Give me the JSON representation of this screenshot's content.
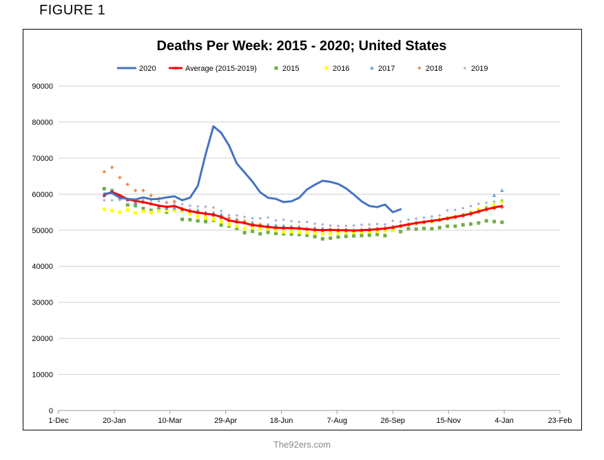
{
  "figure_label": "FIGURE 1",
  "credit": "The92ers.com",
  "chart_data": {
    "type": "line",
    "title": "Deaths Per Week: 2015 - 2020; United States",
    "xlabel": "",
    "ylabel": "",
    "ylim": [
      0,
      90000
    ],
    "y_ticks": [
      "0",
      "10000",
      "20000",
      "30000",
      "40000",
      "50000",
      "60000",
      "70000",
      "80000",
      "90000"
    ],
    "x_ticks": [
      "1-Dec",
      "20-Jan",
      "10-Mar",
      "29-Apr",
      "18-Jun",
      "7-Aug",
      "26-Sep",
      "15-Nov",
      "4-Jan",
      "23-Feb"
    ],
    "grid": "horizontal",
    "legend_position": "top",
    "week_axis_note": "x values are week of year (1-53)",
    "series": [
      {
        "name": "2020",
        "style": "line",
        "color": "#4472C4",
        "x": [
          1,
          2,
          3,
          4,
          5,
          6,
          7,
          8,
          9,
          10,
          11,
          12,
          13,
          14,
          15,
          16,
          17,
          18,
          19,
          20,
          21,
          22,
          23,
          24,
          25,
          26,
          27,
          28,
          29,
          30,
          31,
          32,
          33,
          34,
          35,
          36,
          37,
          38,
          39
        ],
        "values": [
          60100,
          60300,
          59000,
          58700,
          58500,
          59100,
          58600,
          58700,
          59100,
          59400,
          58300,
          59000,
          62300,
          71000,
          78800,
          77000,
          73500,
          68500,
          66000,
          63500,
          60500,
          59000,
          58700,
          57800,
          58000,
          59000,
          61300,
          62600,
          63700,
          63400,
          62800,
          61600,
          59900,
          58000,
          56700,
          56400,
          57100,
          55000,
          55800
        ]
      },
      {
        "name": "Average (2015-2019)",
        "style": "line-marker",
        "color": "#FF0000",
        "x": [
          1,
          2,
          3,
          4,
          5,
          6,
          7,
          8,
          9,
          10,
          11,
          12,
          13,
          14,
          15,
          16,
          17,
          18,
          19,
          20,
          21,
          22,
          23,
          24,
          25,
          26,
          27,
          28,
          29,
          30,
          31,
          32,
          33,
          34,
          35,
          36,
          37,
          38,
          39,
          40,
          41,
          42,
          43,
          44,
          45,
          46,
          47,
          48,
          49,
          50,
          51,
          52
        ],
        "values": [
          59800,
          60600,
          59700,
          58600,
          58100,
          57800,
          57300,
          56800,
          56500,
          56700,
          55900,
          55300,
          54900,
          54600,
          54300,
          53700,
          52700,
          52300,
          52000,
          51400,
          51200,
          50900,
          50700,
          50600,
          50600,
          50500,
          50300,
          50100,
          50000,
          50100,
          50000,
          50000,
          49900,
          50000,
          50100,
          50300,
          50500,
          50800,
          51200,
          51600,
          52000,
          52300,
          52600,
          52900,
          53300,
          53700,
          54100,
          54600,
          55200,
          55800,
          56300,
          56700
        ]
      },
      {
        "name": "2015",
        "style": "marker-square",
        "color": "#70AD47",
        "x": [
          1,
          2,
          3,
          4,
          5,
          6,
          7,
          8,
          9,
          10,
          11,
          12,
          13,
          14,
          15,
          16,
          17,
          18,
          19,
          20,
          21,
          22,
          23,
          24,
          25,
          26,
          27,
          28,
          29,
          30,
          31,
          32,
          33,
          34,
          35,
          36,
          37,
          38,
          39,
          40,
          41,
          42,
          43,
          44,
          45,
          46,
          47,
          48,
          49,
          50,
          51,
          52
        ],
        "values": [
          61500,
          61000,
          58800,
          57000,
          56800,
          56000,
          55500,
          55700,
          55000,
          55500,
          53000,
          52900,
          52600,
          52400,
          52700,
          51400,
          51200,
          50500,
          49300,
          49700,
          49000,
          49400,
          49100,
          49000,
          48900,
          48800,
          48600,
          48200,
          47600,
          47800,
          48100,
          48300,
          48400,
          48500,
          48600,
          48800,
          48500,
          50000,
          49600,
          50400,
          50300,
          50500,
          50400,
          50700,
          51100,
          51100,
          51500,
          51700,
          52000,
          52600,
          52400,
          52200
        ]
      },
      {
        "name": "2016",
        "style": "marker-square",
        "color": "#FFFF00",
        "x": [
          1,
          2,
          3,
          4,
          5,
          6,
          7,
          8,
          9,
          10,
          11,
          12,
          13,
          14,
          15,
          16,
          17,
          18,
          19,
          20,
          21,
          22,
          23,
          24,
          25,
          26,
          27,
          28,
          29,
          30,
          31,
          32,
          33,
          34,
          35,
          36,
          37,
          38,
          39,
          40,
          41,
          42,
          43,
          44,
          45,
          46,
          47,
          48,
          49,
          50,
          51,
          52
        ],
        "values": [
          55800,
          55400,
          55000,
          55600,
          54800,
          55200,
          54900,
          55300,
          55500,
          55500,
          55300,
          54500,
          53800,
          53400,
          53000,
          52300,
          51600,
          51100,
          50500,
          50600,
          50300,
          50500,
          49900,
          49500,
          49600,
          49400,
          49300,
          49200,
          49000,
          49100,
          49200,
          49400,
          49400,
          49500,
          49600,
          49700,
          49800,
          49900,
          51000,
          51600,
          51900,
          52100,
          52400,
          52800,
          53300,
          53700,
          54300,
          55000,
          55800,
          56400,
          57000,
          57900
        ]
      },
      {
        "name": "2017",
        "style": "marker-triangle",
        "color": "#5B9BD5",
        "x": [
          1,
          2,
          3,
          4,
          5,
          6,
          7,
          8,
          9,
          10,
          11,
          12,
          13,
          14,
          15,
          16,
          17,
          18,
          19,
          20,
          21,
          22,
          23,
          24,
          25,
          26,
          27,
          28,
          29,
          30,
          31,
          32,
          33,
          34,
          35,
          36,
          37,
          38,
          39,
          40,
          41,
          42,
          43,
          44,
          45,
          46,
          47,
          48,
          49,
          50,
          51,
          52
        ],
        "values": [
          59500,
          60800,
          58800,
          58300,
          57600,
          57800,
          57400,
          56400,
          56000,
          56100,
          55700,
          55600,
          55500,
          54900,
          54800,
          54300,
          53000,
          53000,
          52400,
          52100,
          51400,
          51500,
          51300,
          51200,
          51000,
          50900,
          50400,
          50600,
          50500,
          50300,
          50200,
          50200,
          50000,
          50200,
          50400,
          50500,
          50700,
          51000,
          51300,
          51700,
          52100,
          52400,
          52700,
          53000,
          53400,
          53800,
          54300,
          54800,
          55400,
          56200,
          59600,
          61000
        ]
      },
      {
        "name": "2018",
        "style": "marker-cross",
        "color": "#ED7D31",
        "x": [
          1,
          2,
          3,
          4,
          5,
          6,
          7,
          8,
          9,
          10,
          11,
          12,
          13,
          14,
          15,
          16,
          17,
          18,
          19,
          20,
          21,
          22,
          23,
          24,
          25,
          26,
          27,
          28,
          29,
          30,
          31,
          32,
          33,
          34,
          35,
          36,
          37,
          38,
          39,
          40,
          41,
          42,
          43,
          44,
          45,
          46,
          47,
          48,
          49,
          50,
          51,
          52
        ],
        "values": [
          66200,
          67400,
          64600,
          62700,
          61000,
          61000,
          59600,
          58800,
          57700,
          58000,
          56000,
          55300,
          55100,
          54400,
          54000,
          53300,
          53400,
          52800,
          52500,
          51600,
          51600,
          51000,
          50800,
          50700,
          50700,
          50600,
          50400,
          50100,
          49900,
          50100,
          50000,
          49800,
          49800,
          50100,
          50100,
          50200,
          50400,
          50700,
          51100,
          51500,
          51800,
          52100,
          52400,
          52800,
          53100,
          53500,
          53900,
          54300,
          55000,
          55600,
          56000,
          56300
        ]
      },
      {
        "name": "2019",
        "style": "marker-diamond",
        "color": "#A5B4D0",
        "x": [
          1,
          2,
          3,
          4,
          5,
          6,
          7,
          8,
          9,
          10,
          11,
          12,
          13,
          14,
          15,
          16,
          17,
          18,
          19,
          20,
          21,
          22,
          23,
          24,
          25,
          26,
          27,
          28,
          29,
          30,
          31,
          32,
          33,
          34,
          35,
          36,
          37,
          38,
          39,
          40,
          41,
          42,
          43,
          44,
          45,
          46,
          47,
          48,
          49,
          50,
          51,
          52
        ],
        "values": [
          58300,
          58300,
          58400,
          58600,
          58500,
          58400,
          58300,
          58000,
          57600,
          57500,
          57200,
          56800,
          56600,
          56500,
          56300,
          55300,
          54200,
          54100,
          53700,
          53300,
          53300,
          53500,
          52700,
          52900,
          52500,
          52300,
          52300,
          51800,
          51600,
          51300,
          51200,
          51200,
          51300,
          51500,
          51600,
          51700,
          51600,
          52600,
          52400,
          52900,
          53200,
          53500,
          53800,
          54100,
          55500,
          55600,
          56100,
          56700,
          57300,
          57600,
          57900,
          58300
        ]
      }
    ]
  }
}
